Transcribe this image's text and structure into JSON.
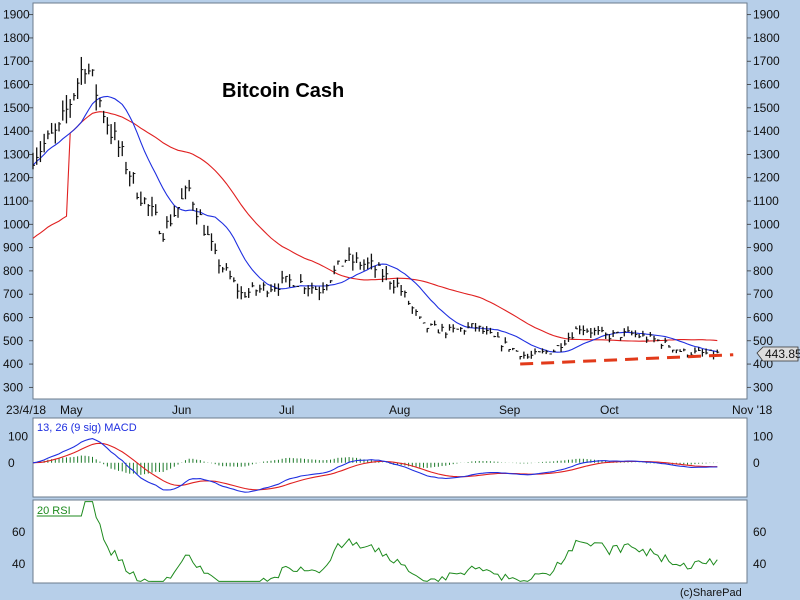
{
  "colors": {
    "page_bg": "#b7cfe9",
    "panel_bg": "#ffffff",
    "candles": "#111111",
    "ma_fast": "#1f2fe0",
    "ma_slow": "#e02020",
    "support": "#e23a1a",
    "macd_line": "#1f2fe0",
    "signal_line": "#e02020",
    "hist": "#1d7a2a",
    "rsi_line": "#1d8a1d",
    "grid": "#e3e3e3"
  },
  "price_panel": {
    "title": "Bitcoin Cash",
    "y_ticks": [
      1900,
      1800,
      1700,
      1600,
      1500,
      1400,
      1300,
      1200,
      1100,
      1000,
      900,
      800,
      700,
      600,
      500,
      400,
      300
    ],
    "current_price_label": "443.85",
    "x_ticks": [
      "23/4/18",
      "May",
      "Jun",
      "Jul",
      "Aug",
      "Sep",
      "Oct",
      "Nov '18"
    ]
  },
  "macd_panel": {
    "label": "13, 26 (9 sig) MACD",
    "y_ticks": [
      100,
      0
    ]
  },
  "rsi_panel": {
    "label": "20 RSI",
    "y_ticks": [
      60,
      40
    ]
  },
  "footer": {
    "credit": "(c)SharePad"
  },
  "chart_data": [
    {
      "type": "ohlc",
      "title": "Bitcoin Cash",
      "x_range": [
        "2018-04-23",
        "2018-11-01"
      ],
      "ylim": [
        250,
        1950
      ],
      "y_scale": "linear",
      "grid": false,
      "weekly_closes": {
        "dates": [
          "2018-04-23",
          "2018-04-30",
          "2018-05-07",
          "2018-05-14",
          "2018-05-21",
          "2018-05-28",
          "2018-06-04",
          "2018-06-11",
          "2018-06-18",
          "2018-06-25",
          "2018-07-02",
          "2018-07-09",
          "2018-07-16",
          "2018-07-23",
          "2018-07-30",
          "2018-08-06",
          "2018-08-13",
          "2018-08-20",
          "2018-08-27",
          "2018-09-03",
          "2018-09-10",
          "2018-09-17",
          "2018-09-24",
          "2018-10-01",
          "2018-10-08",
          "2018-10-15",
          "2018-10-22"
        ],
        "values": [
          1300,
          1400,
          1700,
          1400,
          1150,
          970,
          1150,
          860,
          700,
          730,
          760,
          720,
          850,
          820,
          740,
          560,
          540,
          560,
          490,
          430,
          460,
          560,
          520,
          530,
          500,
          450,
          444
        ]
      },
      "series": [
        {
          "name": "",
          "kind": "moving-average-short",
          "color": "#1f2fe0"
        },
        {
          "name": "",
          "kind": "moving-average-long",
          "color": "#e02020"
        }
      ],
      "annotations": [
        {
          "kind": "support-line-dashed",
          "color": "#e23a1a",
          "from": [
            "2018-09-01",
            400
          ],
          "to": [
            "2018-10-24",
            440
          ]
        }
      ]
    },
    {
      "type": "line",
      "title": "13, 26 (9 sig) MACD",
      "ylim": [
        -130,
        170
      ],
      "y_ticks": [
        100,
        0
      ],
      "series": [
        {
          "name": "",
          "kind": "macd",
          "color": "#1f2fe0"
        },
        {
          "name": "",
          "kind": "signal",
          "color": "#e02020"
        },
        {
          "name": "",
          "kind": "histogram",
          "color": "#1d7a2a"
        }
      ]
    },
    {
      "type": "line",
      "title": "20 RSI",
      "ylim": [
        28,
        80
      ],
      "y_ticks": [
        60,
        40
      ],
      "series": [
        {
          "name": "",
          "kind": "rsi",
          "color": "#1d8a1d"
        }
      ]
    }
  ]
}
